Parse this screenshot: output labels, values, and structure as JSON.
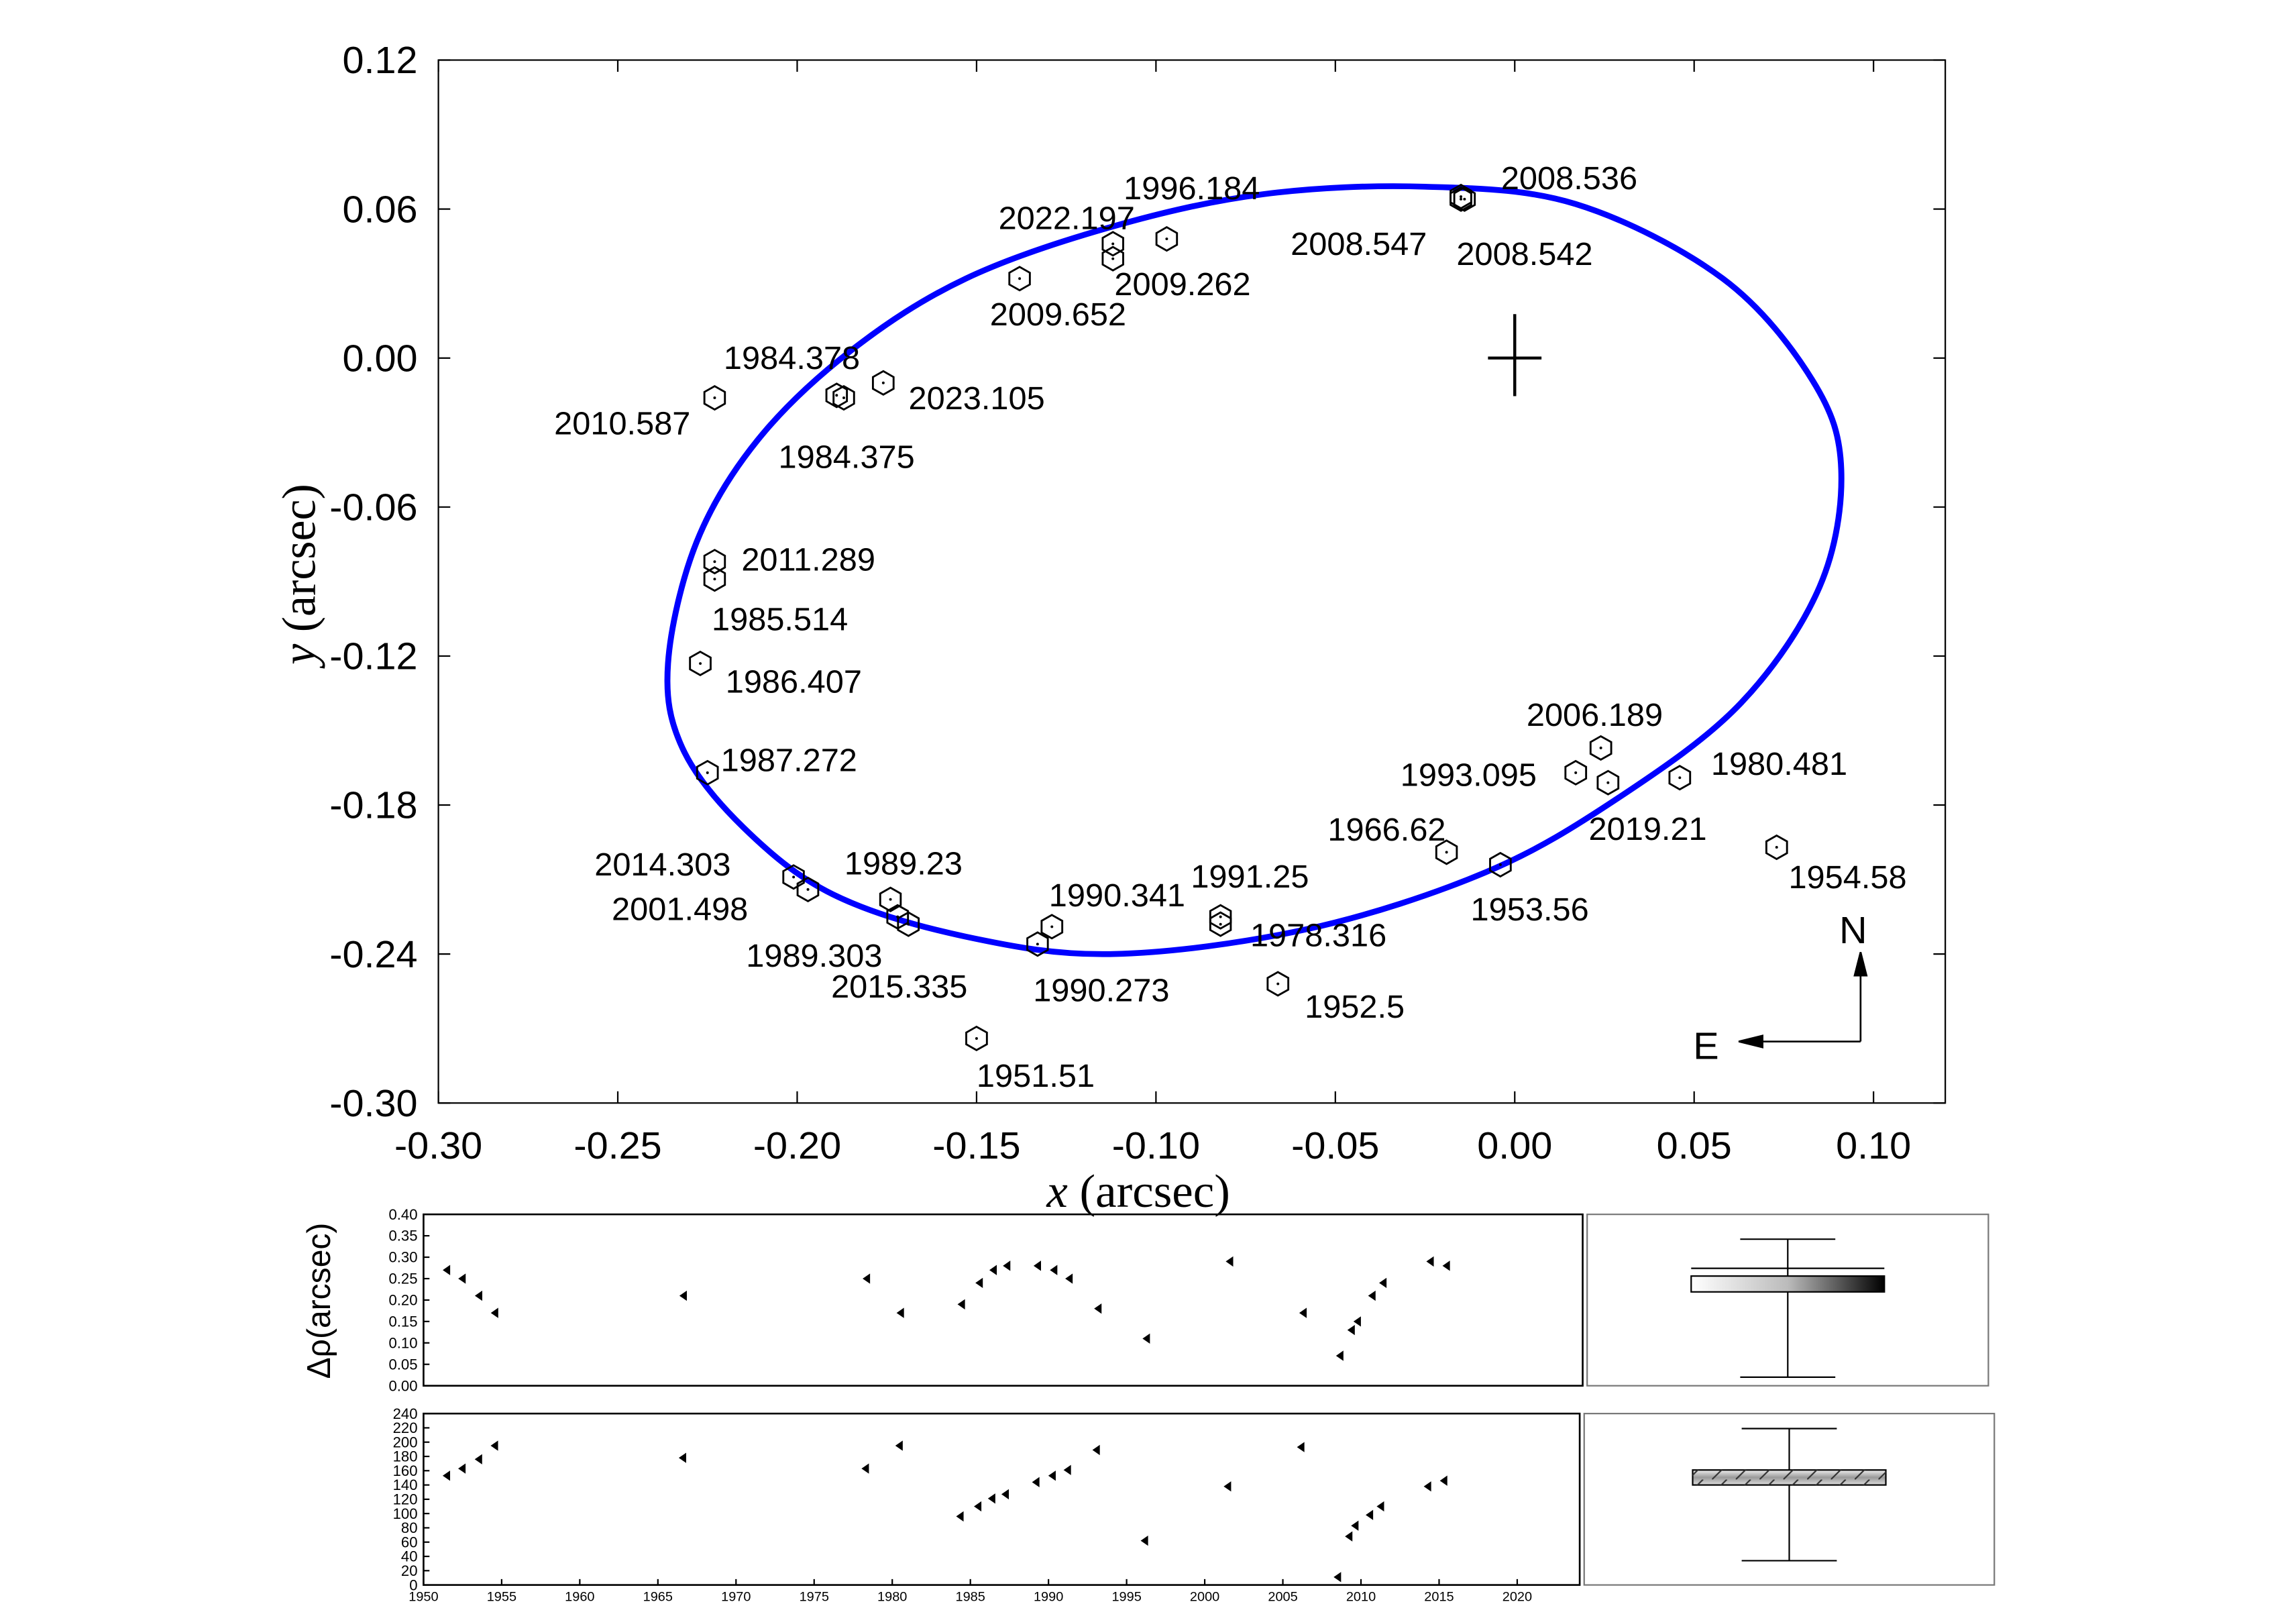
{
  "chart_data": [
    {
      "type": "orbit",
      "x_label_symbol": "x",
      "x_label_unit": "(arcsec)",
      "y_label_symbol": "y",
      "y_label_unit": "(arcsec)",
      "xlim": [
        -0.3,
        0.12
      ],
      "ylim": [
        -0.3,
        0.12
      ],
      "xticks": [
        {
          "value": -0.3,
          "label": "-0.30"
        },
        -0.25,
        {
          "value": -0.2,
          "label": "-0.20"
        },
        -0.15,
        {
          "value": -0.1,
          "label": "-0.10"
        },
        -0.05,
        {
          "value": 0,
          "label": "0.00"
        },
        0.05,
        {
          "value": 0.1,
          "label": "0.10"
        }
      ],
      "yticks": [
        0.12,
        0.06,
        {
          "value": 0,
          "label": "0.00"
        },
        -0.06,
        -0.12,
        -0.18,
        -0.24,
        {
          "value": -0.3,
          "label": "-0.30"
        }
      ],
      "orbit": {
        "color": "#0000ff",
        "x": [
          -0.236,
          -0.228,
          -0.211,
          -0.185,
          -0.153,
          -0.112,
          -0.07,
          -0.025,
          0.017,
          0.058,
          0.083,
          0.091,
          0.085,
          0.063,
          0.029,
          -0.008,
          -0.058,
          -0.112,
          -0.153,
          -0.19,
          -0.215,
          -0.232
        ],
        "y": [
          -0.123,
          -0.074,
          -0.033,
          0.003,
          0.032,
          0.053,
          0.066,
          0.069,
          0.062,
          0.032,
          -0.009,
          -0.045,
          -0.092,
          -0.139,
          -0.177,
          -0.207,
          -0.23,
          -0.24,
          -0.233,
          -0.216,
          -0.189,
          -0.157
        ]
      },
      "origin_marker": {
        "x": 0,
        "y": 0
      },
      "observations": {
        "labels": [
          "2008.536",
          "2008.547",
          "2008.542",
          "1996.184",
          "2022.197",
          "2009.262",
          "2009.652",
          "1984.378",
          "1984.375",
          "2023.105",
          "2010.587",
          "2011.289",
          "1985.514",
          "1986.407",
          "1987.272",
          "2014.303",
          "2001.498",
          "1989.23",
          "1989.303",
          "2015.335",
          "1990.341",
          "1990.273",
          "1991.25",
          "1978.316",
          "1952.5",
          "1951.51",
          "1966.62",
          "1953.56",
          "1993.095",
          "2006.189",
          "2019.21",
          "1980.481",
          "1954.58"
        ],
        "x": [
          -0.015,
          -0.014,
          -0.015,
          -0.097,
          -0.112,
          -0.112,
          -0.138,
          -0.189,
          -0.187,
          -0.176,
          -0.223,
          -0.223,
          -0.223,
          -0.227,
          -0.225,
          -0.201,
          -0.197,
          -0.174,
          -0.172,
          -0.169,
          -0.129,
          -0.133,
          -0.082,
          -0.082,
          -0.066,
          -0.15,
          -0.019,
          -0.004,
          0.017,
          0.024,
          0.026,
          0.046,
          0.073
        ],
        "y": [
          0.065,
          0.064,
          0.064,
          0.048,
          0.046,
          0.04,
          0.032,
          -0.015,
          -0.016,
          -0.01,
          -0.016,
          -0.082,
          -0.089,
          -0.123,
          -0.167,
          -0.209,
          -0.214,
          -0.218,
          -0.225,
          -0.228,
          -0.229,
          -0.236,
          -0.225,
          -0.228,
          -0.252,
          -0.274,
          -0.199,
          -0.204,
          -0.167,
          -0.157,
          -0.171,
          -0.169,
          -0.197
        ]
      },
      "compass": {
        "north": "N",
        "east": "E"
      }
    },
    {
      "type": "residual",
      "y_label": "Δρ(arcsec)",
      "xlim": [
        1950,
        2024
      ],
      "ylim": [
        0,
        0.4
      ],
      "yticks": [
        {
          "value": 0,
          "label": "0.00"
        },
        0.05,
        {
          "value": 0.1,
          "label": "0.10"
        },
        0.15,
        {
          "value": 0.2,
          "label": "0.20"
        },
        0.25,
        {
          "value": 0.3,
          "label": "0.30"
        },
        0.35,
        {
          "value": 0.4,
          "label": "0.40"
        }
      ],
      "x": [
        1951.51,
        1952.5,
        1953.56,
        1954.58,
        1966.62,
        1978.316,
        1980.481,
        1984.375,
        1985.514,
        1986.407,
        1987.272,
        1989.23,
        1990.273,
        1991.25,
        1993.095,
        1996.184,
        2001.498,
        2006.189,
        2008.536,
        2009.262,
        2009.652,
        2010.587,
        2011.289,
        2014.303,
        2015.335
      ],
      "values": [
        0.27,
        0.25,
        0.21,
        0.17,
        0.21,
        0.25,
        0.17,
        0.19,
        0.24,
        0.27,
        0.28,
        0.28,
        0.27,
        0.25,
        0.18,
        0.11,
        0.29,
        0.17,
        0.07,
        0.13,
        0.15,
        0.21,
        0.24,
        0.29,
        0.28
      ],
      "box": {
        "whisker_low": 0.02,
        "q1": 0.219,
        "q3": 0.256,
        "whisker_high": 0.342,
        "mean": 0.274
      }
    },
    {
      "type": "residual",
      "xlim": [
        1950,
        2024
      ],
      "ylim": [
        0,
        240
      ],
      "xticks": [
        1950,
        1955,
        1960,
        1965,
        1970,
        1975,
        1980,
        1985,
        1990,
        1995,
        2000,
        2005,
        2010,
        2015,
        2020
      ],
      "yticks": [
        0,
        20,
        40,
        60,
        80,
        100,
        120,
        140,
        160,
        180,
        200,
        220,
        240
      ],
      "x": [
        1951.51,
        1952.5,
        1953.56,
        1954.58,
        1966.62,
        1978.316,
        1980.481,
        1984.375,
        1985.514,
        1986.407,
        1987.272,
        1989.23,
        1990.273,
        1991.25,
        1993.095,
        1996.184,
        2001.498,
        2006.189,
        2008.536,
        2009.262,
        2009.652,
        2010.587,
        2011.289,
        2014.303,
        2015.335
      ],
      "values": [
        153,
        163,
        176,
        195,
        178,
        163,
        195,
        96,
        110,
        121,
        127,
        144,
        153,
        161,
        189,
        62,
        138,
        193,
        11,
        68,
        83,
        98,
        110,
        138,
        146
      ],
      "box": {
        "whisker_low": 34,
        "q1": 140,
        "q3": 161,
        "whisker_high": 219
      }
    }
  ]
}
